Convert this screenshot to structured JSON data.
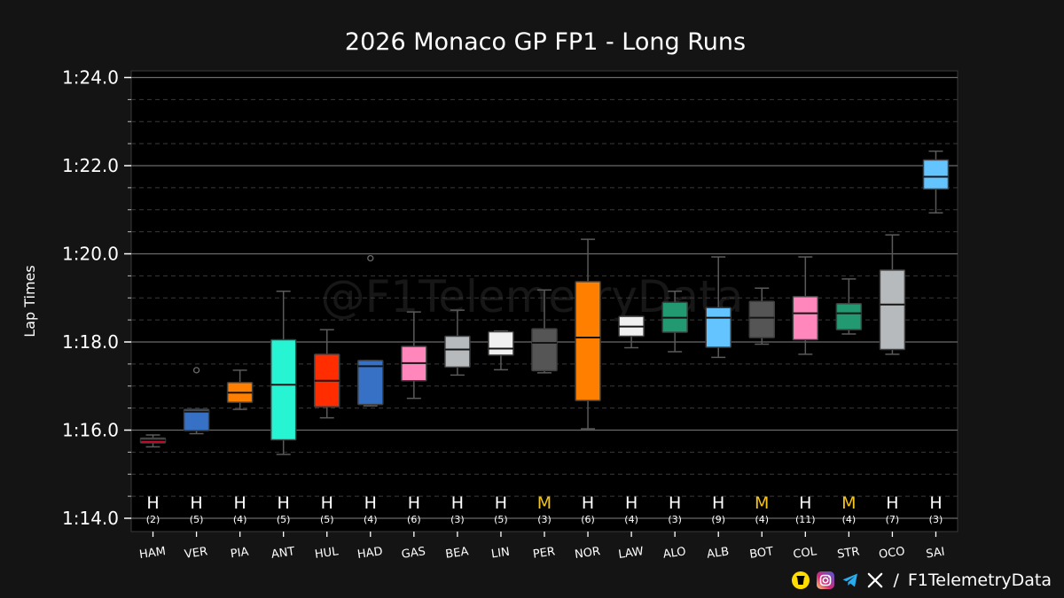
{
  "chart_data": {
    "type": "box",
    "title": "2026 Monaco GP FP1 - Long Runs",
    "ylabel": "Lap Times",
    "ylim": [
      74.0,
      84.2
    ],
    "y_ticks": [
      {
        "value": 74,
        "label": "1:14.0"
      },
      {
        "value": 76,
        "label": "1:16.0"
      },
      {
        "value": 78,
        "label": "1:18.0"
      },
      {
        "value": 80,
        "label": "1:20.0"
      },
      {
        "value": 82,
        "label": "1:22.0"
      },
      {
        "value": 84,
        "label": "1:24.0"
      }
    ],
    "watermark": "@F1TelemetryData",
    "drivers": [
      {
        "name": "HAM",
        "color": "#C8102E",
        "compound": "H",
        "compound_color": "#ffffff",
        "laps": "(2)",
        "whislo": 75.62,
        "q1": 75.71,
        "med": 75.77,
        "q3": 75.82,
        "whishi": 75.89,
        "fliers": []
      },
      {
        "name": "VER",
        "color": "#3671C6",
        "compound": "H",
        "compound_color": "#ffffff",
        "laps": "(5)",
        "whislo": 75.92,
        "q1": 75.99,
        "med": 76.42,
        "q3": 76.47,
        "whishi": 76.47,
        "fliers": [
          77.36
        ]
      },
      {
        "name": "PIA",
        "color": "#FF8000",
        "compound": "H",
        "compound_color": "#ffffff",
        "laps": "(4)",
        "whislo": 76.47,
        "q1": 76.63,
        "med": 76.85,
        "q3": 77.08,
        "whishi": 77.36,
        "fliers": []
      },
      {
        "name": "ANT",
        "color": "#27F4D2",
        "compound": "H",
        "compound_color": "#ffffff",
        "laps": "(5)",
        "whislo": 75.45,
        "q1": 75.78,
        "med": 77.03,
        "q3": 78.05,
        "whishi": 79.15,
        "fliers": []
      },
      {
        "name": "HUL",
        "color": "#FF2D00",
        "compound": "H",
        "compound_color": "#ffffff",
        "laps": "(5)",
        "whislo": 76.28,
        "q1": 76.53,
        "med": 77.12,
        "q3": 77.72,
        "whishi": 78.28,
        "fliers": []
      },
      {
        "name": "HAD",
        "color": "#3671C6",
        "compound": "H",
        "compound_color": "#ffffff",
        "laps": "(4)",
        "whislo": 76.55,
        "q1": 76.58,
        "med": 77.45,
        "q3": 77.58,
        "whishi": 77.58,
        "fliers": [
          79.9
        ]
      },
      {
        "name": "GAS",
        "color": "#FF87BC",
        "compound": "H",
        "compound_color": "#ffffff",
        "laps": "(6)",
        "whislo": 76.72,
        "q1": 77.12,
        "med": 77.52,
        "q3": 77.9,
        "whishi": 78.68,
        "fliers": []
      },
      {
        "name": "BEA",
        "color": "#B6BABD",
        "compound": "H",
        "compound_color": "#ffffff",
        "laps": "(3)",
        "whislo": 77.25,
        "q1": 77.43,
        "med": 77.83,
        "q3": 78.13,
        "whishi": 78.72,
        "fliers": []
      },
      {
        "name": "LIN",
        "color": "#F0F0F0",
        "compound": "H",
        "compound_color": "#ffffff",
        "laps": "(5)",
        "whislo": 77.37,
        "q1": 77.7,
        "med": 77.85,
        "q3": 78.23,
        "whishi": 78.25,
        "fliers": []
      },
      {
        "name": "PER",
        "color": "#555555",
        "compound": "M",
        "compound_color": "#f5c518",
        "laps": "(3)",
        "whislo": 77.3,
        "q1": 77.35,
        "med": 77.98,
        "q3": 78.3,
        "whishi": 79.18,
        "fliers": []
      },
      {
        "name": "NOR",
        "color": "#FF8000",
        "compound": "H",
        "compound_color": "#ffffff",
        "laps": "(6)",
        "whislo": 76.03,
        "q1": 76.67,
        "med": 78.1,
        "q3": 79.37,
        "whishi": 80.33,
        "fliers": []
      },
      {
        "name": "LAW",
        "color": "#F0F0F0",
        "compound": "H",
        "compound_color": "#ffffff",
        "laps": "(4)",
        "whislo": 77.87,
        "q1": 78.13,
        "med": 78.35,
        "q3": 78.58,
        "whishi": 78.58,
        "fliers": []
      },
      {
        "name": "ALO",
        "color": "#229971",
        "compound": "H",
        "compound_color": "#ffffff",
        "laps": "(3)",
        "whislo": 77.78,
        "q1": 78.22,
        "med": 78.55,
        "q3": 78.9,
        "whishi": 79.15,
        "fliers": []
      },
      {
        "name": "ALB",
        "color": "#64C4FF",
        "compound": "H",
        "compound_color": "#ffffff",
        "laps": "(9)",
        "whislo": 77.65,
        "q1": 77.88,
        "med": 78.55,
        "q3": 78.78,
        "whishi": 79.93,
        "fliers": []
      },
      {
        "name": "BOT",
        "color": "#555555",
        "compound": "M",
        "compound_color": "#f5c518",
        "laps": "(4)",
        "whislo": 77.95,
        "q1": 78.1,
        "med": 78.55,
        "q3": 78.92,
        "whishi": 79.22,
        "fliers": []
      },
      {
        "name": "COL",
        "color": "#FF87BC",
        "compound": "H",
        "compound_color": "#ffffff",
        "laps": "(11)",
        "whislo": 77.72,
        "q1": 78.05,
        "med": 78.65,
        "q3": 79.03,
        "whishi": 79.93,
        "fliers": []
      },
      {
        "name": "STR",
        "color": "#229971",
        "compound": "M",
        "compound_color": "#f5c518",
        "laps": "(4)",
        "whislo": 78.18,
        "q1": 78.28,
        "med": 78.65,
        "q3": 78.87,
        "whishi": 79.43,
        "fliers": []
      },
      {
        "name": "OCO",
        "color": "#B6BABD",
        "compound": "H",
        "compound_color": "#ffffff",
        "laps": "(7)",
        "whislo": 77.72,
        "q1": 77.83,
        "med": 78.85,
        "q3": 79.63,
        "whishi": 80.43,
        "fliers": []
      },
      {
        "name": "SAI",
        "color": "#64C4FF",
        "compound": "H",
        "compound_color": "#ffffff",
        "laps": "(3)",
        "whislo": 80.93,
        "q1": 81.47,
        "med": 81.75,
        "q3": 82.13,
        "whishi": 82.33,
        "fliers": []
      }
    ]
  },
  "footer": {
    "handle": "F1TelemetryData",
    "separator": "/",
    "icons": [
      "buymeacoffee-icon",
      "instagram-icon",
      "telegram-icon",
      "x-icon"
    ]
  }
}
